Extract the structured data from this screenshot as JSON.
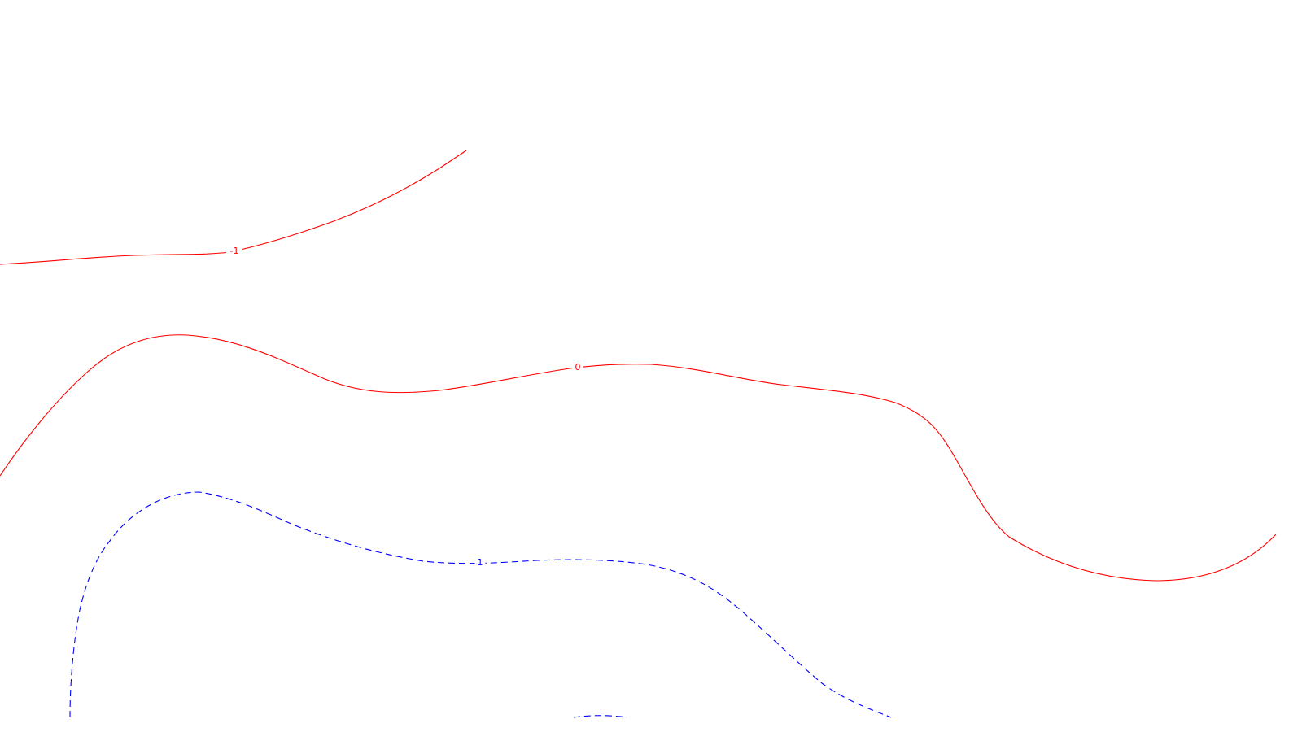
{
  "chart_data": {
    "type": "contour",
    "title": "",
    "xlabel": "",
    "ylabel": "",
    "grid": false,
    "legend": false,
    "levels": [
      {
        "level": "-1",
        "style": "solid",
        "color": "#ff0000",
        "label": "-1"
      },
      {
        "level": "0",
        "style": "solid",
        "color": "#ff0000",
        "label": "0"
      },
      {
        "level": "1",
        "style": "dashed",
        "color": "#0000ff",
        "label": "1"
      },
      {
        "level": "1",
        "style": "dashed",
        "color": "#0000ff",
        "label": ""
      }
    ]
  }
}
